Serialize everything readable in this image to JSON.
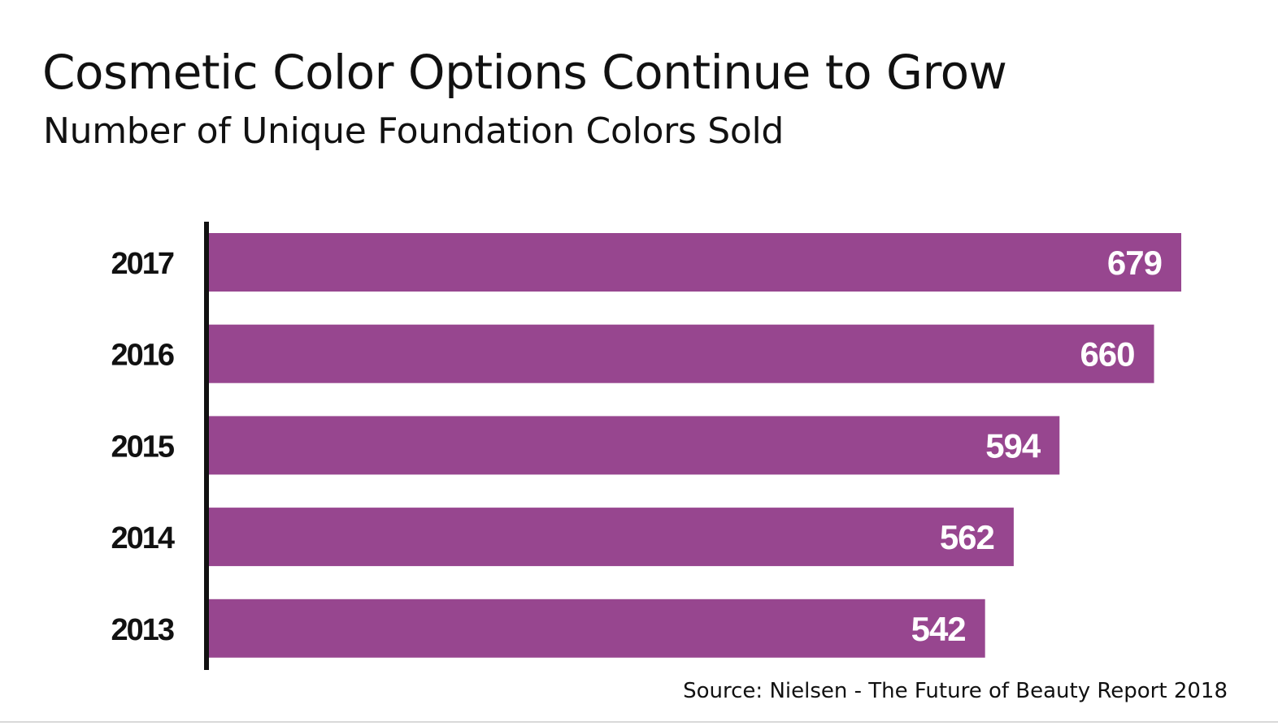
{
  "header": {
    "title": "Cosmetic Color Options Continue to Grow",
    "subtitle": "Number of Unique Foundation Colors Sold"
  },
  "footer": {
    "source": "Source: Nielsen - The Future of Beauty Report 2018"
  },
  "colors": {
    "bar": "#97468f",
    "axis": "#111111",
    "label": "#111111",
    "value_label": "#ffffff"
  },
  "chart_data": {
    "type": "bar",
    "orientation": "horizontal",
    "title": "Cosmetic Color Options Continue to Grow",
    "subtitle": "Number of Unique Foundation Colors Sold",
    "xlabel": "",
    "ylabel": "",
    "categories": [
      "2017",
      "2016",
      "2015",
      "2014",
      "2013"
    ],
    "values": [
      679,
      660,
      594,
      562,
      542
    ],
    "xlim": [
      0,
      679
    ],
    "grid": false,
    "data_labels": true
  }
}
